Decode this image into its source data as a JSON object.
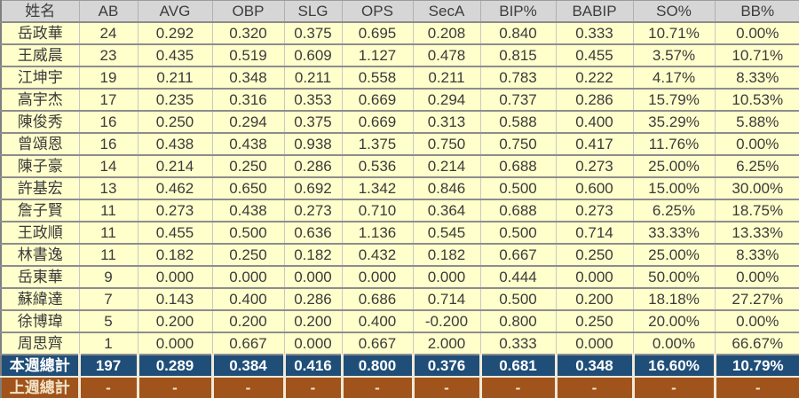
{
  "table": {
    "columns": [
      "姓名",
      "AB",
      "AVG",
      "OBP",
      "SLG",
      "OPS",
      "SecA",
      "BIP%",
      "BABIP",
      "SO%",
      "BB%"
    ],
    "rows": [
      [
        "岳政華",
        "24",
        "0.292",
        "0.320",
        "0.375",
        "0.695",
        "0.208",
        "0.840",
        "0.333",
        "10.71%",
        "0.00%"
      ],
      [
        "王威晨",
        "23",
        "0.435",
        "0.519",
        "0.609",
        "1.127",
        "0.478",
        "0.815",
        "0.455",
        "3.57%",
        "10.71%"
      ],
      [
        "江坤宇",
        "19",
        "0.211",
        "0.348",
        "0.211",
        "0.558",
        "0.211",
        "0.783",
        "0.222",
        "4.17%",
        "8.33%"
      ],
      [
        "高宇杰",
        "17",
        "0.235",
        "0.316",
        "0.353",
        "0.669",
        "0.294",
        "0.737",
        "0.286",
        "15.79%",
        "10.53%"
      ],
      [
        "陳俊秀",
        "16",
        "0.250",
        "0.294",
        "0.375",
        "0.669",
        "0.313",
        "0.588",
        "0.400",
        "35.29%",
        "5.88%"
      ],
      [
        "曾頌恩",
        "16",
        "0.438",
        "0.438",
        "0.938",
        "1.375",
        "0.750",
        "0.750",
        "0.417",
        "11.76%",
        "0.00%"
      ],
      [
        "陳子豪",
        "14",
        "0.214",
        "0.250",
        "0.286",
        "0.536",
        "0.214",
        "0.688",
        "0.273",
        "25.00%",
        "6.25%"
      ],
      [
        "許基宏",
        "13",
        "0.462",
        "0.650",
        "0.692",
        "1.342",
        "0.846",
        "0.500",
        "0.600",
        "15.00%",
        "30.00%"
      ],
      [
        "詹子賢",
        "11",
        "0.273",
        "0.438",
        "0.273",
        "0.710",
        "0.364",
        "0.688",
        "0.273",
        "6.25%",
        "18.75%"
      ],
      [
        "王政順",
        "11",
        "0.455",
        "0.500",
        "0.636",
        "1.136",
        "0.545",
        "0.500",
        "0.714",
        "33.33%",
        "13.33%"
      ],
      [
        "林書逸",
        "11",
        "0.182",
        "0.250",
        "0.182",
        "0.432",
        "0.182",
        "0.667",
        "0.250",
        "25.00%",
        "8.33%"
      ],
      [
        "岳東華",
        "9",
        "0.000",
        "0.000",
        "0.000",
        "0.000",
        "0.000",
        "0.444",
        "0.000",
        "50.00%",
        "0.00%"
      ],
      [
        "蘇緯達",
        "7",
        "0.143",
        "0.400",
        "0.286",
        "0.686",
        "0.714",
        "0.500",
        "0.200",
        "18.18%",
        "27.27%"
      ],
      [
        "徐博瑋",
        "5",
        "0.200",
        "0.200",
        "0.200",
        "0.400",
        "-0.200",
        "0.800",
        "0.250",
        "20.00%",
        "0.00%"
      ],
      [
        "周思齊",
        "1",
        "0.000",
        "0.667",
        "0.000",
        "0.667",
        "2.000",
        "0.333",
        "0.000",
        "0.00%",
        "66.67%"
      ]
    ],
    "totals": [
      {
        "type": "this-week",
        "label": "本週總計",
        "values": [
          "197",
          "0.289",
          "0.384",
          "0.416",
          "0.800",
          "0.376",
          "0.681",
          "0.348",
          "16.60%",
          "10.79%"
        ]
      },
      {
        "type": "last-week",
        "label": "上週總計",
        "values": [
          "-",
          "-",
          "-",
          "-",
          "-",
          "-",
          "-",
          "-",
          "-",
          "-"
        ]
      }
    ],
    "colors": {
      "header-bg": "#d6d6d6",
      "row-bg": "#ffffcc",
      "this-week-bg": "#1f4e79",
      "last-week-bg": "#a1531c",
      "total-text": "#ffffff",
      "last-week-text": "#f2e4c8"
    }
  }
}
